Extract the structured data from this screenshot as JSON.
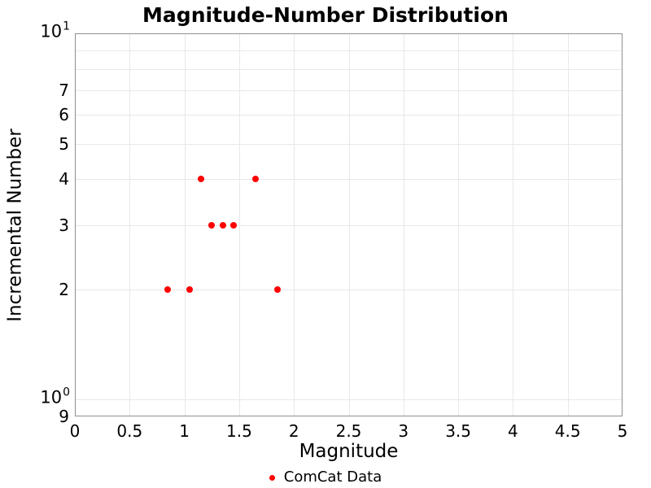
{
  "chart_data": {
    "type": "scatter",
    "title": "Magnitude-Number Distribution",
    "xlabel": "Magnitude",
    "ylabel": "Incremental Number",
    "x_axis": {
      "min": 0,
      "max": 5,
      "scale": "linear",
      "ticks": [
        {
          "v": 0,
          "label": "0"
        },
        {
          "v": 0.5,
          "label": "0.5"
        },
        {
          "v": 1,
          "label": "1"
        },
        {
          "v": 1.5,
          "label": "1.5"
        },
        {
          "v": 2,
          "label": "2"
        },
        {
          "v": 2.5,
          "label": "2.5"
        },
        {
          "v": 3,
          "label": "3"
        },
        {
          "v": 3.5,
          "label": "3.5"
        },
        {
          "v": 4,
          "label": "4"
        },
        {
          "v": 4.5,
          "label": "4.5"
        },
        {
          "v": 5,
          "label": "5"
        }
      ],
      "grid": true
    },
    "y_axis": {
      "min": 0.9,
      "max": 10,
      "scale": "log",
      "ticks": [
        {
          "v": 10,
          "mantissa": "10",
          "exp": "1"
        },
        {
          "v": 7,
          "label": "7"
        },
        {
          "v": 6,
          "label": "6"
        },
        {
          "v": 5,
          "label": "5"
        },
        {
          "v": 4,
          "label": "4"
        },
        {
          "v": 3,
          "label": "3"
        },
        {
          "v": 2,
          "label": "2"
        },
        {
          "v": 1,
          "mantissa": "10",
          "exp": "0"
        },
        {
          "v": 0.9,
          "label": "9"
        }
      ],
      "grid_values": [
        1,
        2,
        3,
        4,
        5,
        6,
        7,
        8,
        9
      ],
      "grid": true
    },
    "series": [
      {
        "name": "ComCat Data",
        "color": "#ff0000",
        "marker": "circle",
        "points": [
          {
            "x": 0.85,
            "y": 2
          },
          {
            "x": 1.05,
            "y": 2
          },
          {
            "x": 1.15,
            "y": 4
          },
          {
            "x": 1.25,
            "y": 3
          },
          {
            "x": 1.35,
            "y": 3
          },
          {
            "x": 1.45,
            "y": 3
          },
          {
            "x": 1.65,
            "y": 4
          },
          {
            "x": 1.85,
            "y": 2
          }
        ]
      }
    ],
    "legend": {
      "position": "bottom-center",
      "entries": [
        {
          "label": "ComCat Data",
          "color": "#ff0000"
        }
      ]
    },
    "colors": {
      "background": "#ffffff",
      "grid": "#e8e8e8",
      "spine": "#8f8f8f",
      "text": "#000000"
    }
  }
}
